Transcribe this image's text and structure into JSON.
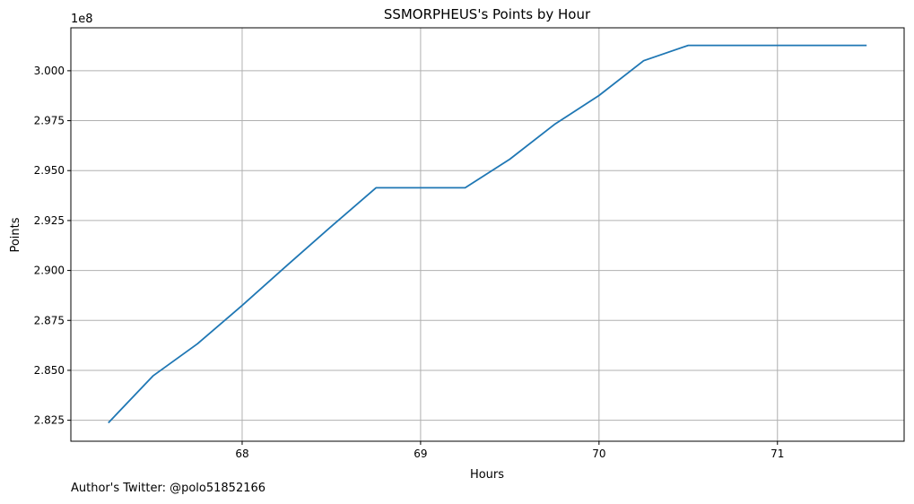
{
  "chart_data": {
    "type": "line",
    "title": "SSMORPHEUS's Points by Hour",
    "xlabel": "Hours",
    "ylabel": "Points",
    "y_offset_label": "1e8",
    "grid": true,
    "xlim": [
      67.04,
      71.71
    ],
    "ylim": [
      2.8145,
      3.0215
    ],
    "x_ticks": [
      68,
      69,
      70,
      71
    ],
    "x_tick_labels": [
      "68",
      "69",
      "70",
      "71"
    ],
    "y_ticks": [
      2.825,
      2.85,
      2.875,
      2.9,
      2.925,
      2.95,
      2.975,
      3.0
    ],
    "y_tick_labels": [
      "2.825",
      "2.850",
      "2.875",
      "2.900",
      "2.925",
      "2.950",
      "2.975",
      "3.000"
    ],
    "series": [
      {
        "color": "#1f77b4",
        "x": [
          67.25,
          67.5,
          67.75,
          68.0,
          68.25,
          68.5,
          68.75,
          69.0,
          69.25,
          69.5,
          69.75,
          70.0,
          70.25,
          70.5,
          70.75,
          71.0,
          71.25,
          71.5
        ],
        "y": [
          2.8237,
          2.8472,
          2.8633,
          2.8825,
          2.9024,
          2.9221,
          2.9414,
          2.9414,
          2.9414,
          2.9557,
          2.9731,
          2.9876,
          3.005,
          3.0127,
          3.0127,
          3.0127,
          3.0127,
          3.0127
        ]
      }
    ]
  },
  "footer": {
    "author": "Author's Twitter: @polo51852166"
  }
}
